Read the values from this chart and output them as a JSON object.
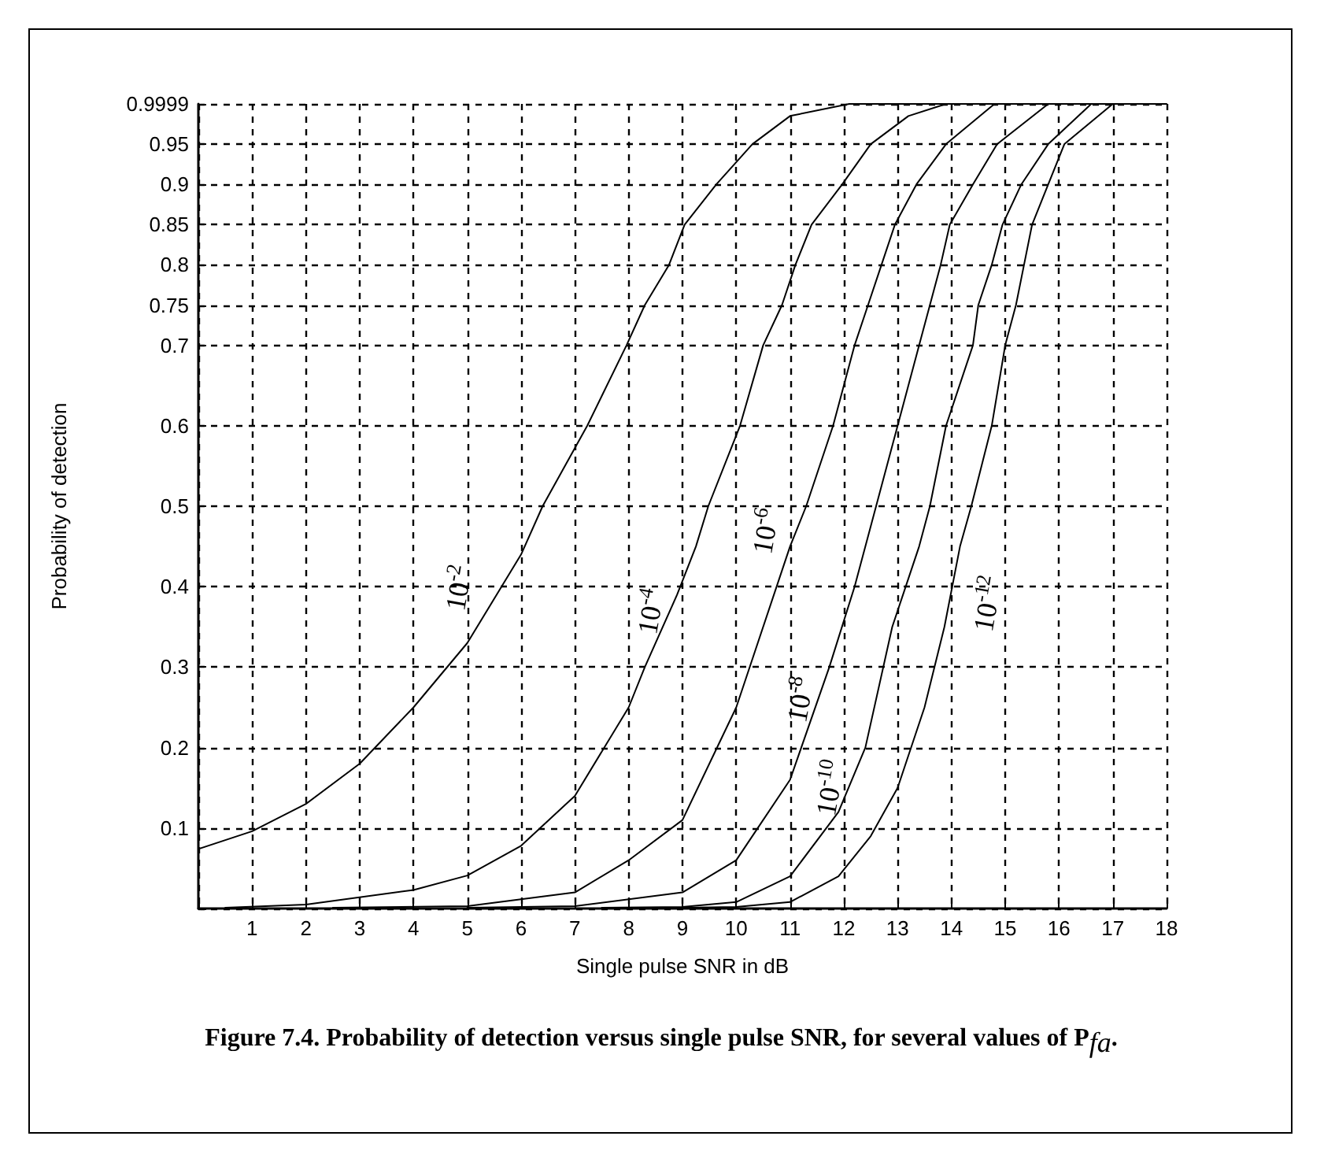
{
  "chart_data": {
    "type": "line",
    "xlabel": "Single pulse SNR in dB",
    "ylabel": "Probability of detection",
    "xlim": [
      0,
      18
    ],
    "xticks": [
      {
        "value": 0,
        "label": null
      },
      1,
      2,
      3,
      4,
      5,
      6,
      7,
      8,
      9,
      10,
      11,
      12,
      13,
      14,
      15,
      16,
      17,
      18
    ],
    "ylim": [
      0,
      1
    ],
    "yticks": [
      {
        "value": 0,
        "label": null
      },
      0.1,
      0.2,
      0.3,
      0.4,
      0.5,
      0.6,
      0.7,
      0.75,
      0.8,
      0.85,
      0.9,
      0.95,
      0.9999
    ],
    "grid": true,
    "marker": "none",
    "line_style": "solid",
    "series": [
      {
        "name": "10$^{-2}$",
        "color": "#000000",
        "x": [
          0,
          1,
          2,
          3,
          4,
          5,
          6,
          6.4,
          7.23,
          7.96,
          8.3,
          8.75,
          9.04,
          9.63,
          10.3,
          11,
          12.1,
          18
        ],
        "values": [
          0.074,
          0.096,
          0.13,
          0.18,
          0.25,
          0.33,
          0.44,
          0.5,
          0.6,
          0.7,
          0.75,
          0.8,
          0.85,
          0.9,
          0.95,
          0.985,
          1,
          1
        ]
      },
      {
        "name": "10$^{-4}$",
        "color": "#000000",
        "x": [
          0.5,
          2,
          4,
          5,
          6,
          7,
          8,
          8.3,
          8.9,
          9.25,
          9.48,
          10.07,
          10.5,
          10.85,
          11.1,
          11.4,
          11.97,
          12.5,
          13.2,
          13.9
        ],
        "values": [
          0.001,
          0.005,
          0.023,
          0.041,
          0.078,
          0.14,
          0.25,
          0.3,
          0.39,
          0.45,
          0.5,
          0.6,
          0.7,
          0.75,
          0.8,
          0.85,
          0.9,
          0.95,
          0.985,
          1
        ]
      },
      {
        "name": "10$^{-6}$",
        "color": "#000000",
        "x": [
          2.5,
          5,
          7,
          8,
          9,
          10,
          11,
          11.3,
          11.8,
          12.2,
          12.45,
          12.7,
          12.95,
          13.35,
          13.9,
          14.8
        ],
        "values": [
          0.001,
          0.003,
          0.02,
          0.06,
          0.11,
          0.25,
          0.45,
          0.5,
          0.6,
          0.7,
          0.75,
          0.8,
          0.85,
          0.9,
          0.95,
          1
        ]
      },
      {
        "name": "10$^{-8}$",
        "color": "#000000",
        "x": [
          5,
          7,
          9,
          10,
          11,
          11.73,
          12.2,
          12.6,
          13,
          13.4,
          13.6,
          13.8,
          13.97,
          14.4,
          14.85,
          15.8
        ],
        "values": [
          0.001,
          0.003,
          0.02,
          0.06,
          0.16,
          0.3,
          0.4,
          0.5,
          0.6,
          0.7,
          0.75,
          0.8,
          0.85,
          0.9,
          0.95,
          1
        ]
      },
      {
        "name": "10$^{-10}$",
        "color": "#000000",
        "x": [
          7.5,
          9,
          10,
          11,
          11.9,
          12.4,
          12.9,
          13.4,
          13.6,
          13.9,
          14.4,
          14.5,
          14.75,
          14.95,
          15.3,
          15.8,
          16.6
        ],
        "values": [
          0.001,
          0.002,
          0.008,
          0.04,
          0.12,
          0.2,
          0.35,
          0.45,
          0.5,
          0.6,
          0.7,
          0.75,
          0.8,
          0.85,
          0.9,
          0.95,
          1
        ]
      },
      {
        "name": "10$^{-12}$",
        "color": "#000000",
        "x": [
          9,
          10,
          11,
          11.9,
          12.5,
          13,
          13.5,
          13.87,
          14.16,
          14.37,
          14.75,
          15,
          15.2,
          15.35,
          15.5,
          15.8,
          16.1,
          17
        ],
        "values": [
          0.001,
          0.002,
          0.008,
          0.04,
          0.09,
          0.15,
          0.25,
          0.35,
          0.45,
          0.5,
          0.6,
          0.7,
          0.75,
          0.8,
          0.85,
          0.9,
          0.95,
          1
        ]
      }
    ],
    "annotations": [
      "Figure 7.4. Probability of detection versus single pulse SNR, for several values of P$_{fa}$."
    ]
  }
}
